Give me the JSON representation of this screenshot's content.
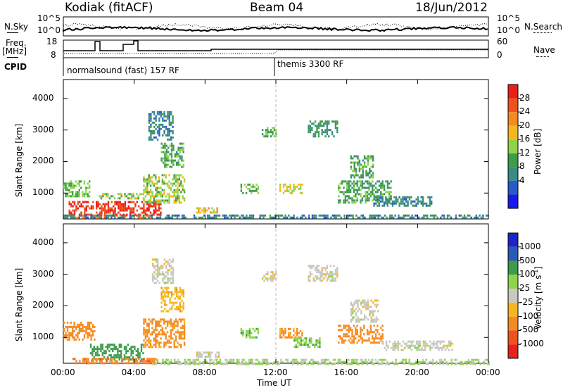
{
  "header": {
    "radar": "Kodiak (fitACF)",
    "beam": "Beam 04",
    "date": "18/Jun/2012"
  },
  "left_labels": {
    "nsky": "N.Sky",
    "freq": "Freq.",
    "freq_unit": "[MHz]",
    "cpid": "CPID"
  },
  "right_labels": {
    "nsearch": "N.Search",
    "nave": "Nave"
  },
  "strip_axes": {
    "noise_left_ticks": [
      "10^5",
      "10^0"
    ],
    "noise_right_ticks": [
      "10^5",
      "10^0"
    ],
    "freq_left_ticks": [
      "18",
      "8"
    ],
    "nave_right_ticks": [
      "60",
      "0"
    ]
  },
  "cpid": {
    "mode1": "normalsound (fast) 157 RF",
    "mode2": "themis 3300 RF"
  },
  "power_colorbar": {
    "label": "Power [dB]",
    "ticks": [
      "28",
      "24",
      "20",
      "16",
      "12",
      "8",
      "4"
    ],
    "colors": [
      "#e8201a",
      "#f0521e",
      "#f48a22",
      "#f4b81e",
      "#8ed44a",
      "#3c9c4a",
      "#3a8a8a",
      "#2a5ac8",
      "#1a1ae8"
    ]
  },
  "velocity_colorbar": {
    "label": "Velocity [m s",
    "label_sup": "-1",
    "label_end": "]",
    "ticks": [
      "1000",
      "500",
      "100",
      "25",
      "-25",
      "-100",
      "-500",
      "-1000"
    ],
    "colors": [
      "#1c24c8",
      "#2a5ab4",
      "#3c9c4a",
      "#8ed44a",
      "#c8c8c0",
      "#f4b81e",
      "#f48a22",
      "#f0521e",
      "#e8201a"
    ]
  },
  "yaxis": {
    "label": "Slant Range [km]",
    "ticks": [
      "4000",
      "3000",
      "2000",
      "1000"
    ]
  },
  "xaxis": {
    "label": "Time UT",
    "ticks": [
      "00:00",
      "04:00",
      "08:00",
      "12:00",
      "16:00",
      "20:00",
      "00:00"
    ]
  },
  "chart_data": [
    {
      "type": "heatmap",
      "title": "Power",
      "xlabel": "Time UT",
      "ylabel": "Slant Range [km]",
      "xlim": [
        0,
        24
      ],
      "ylim": [
        180,
        4600
      ],
      "regions": [
        {
          "t": [
            0.0,
            5.0
          ],
          "r": [
            200,
            320
          ],
          "value": 24
        },
        {
          "t": [
            0.3,
            5.5
          ],
          "r": [
            320,
            750
          ],
          "value": 28
        },
        {
          "t": [
            0.0,
            1.5
          ],
          "r": [
            900,
            1400
          ],
          "value": 12
        },
        {
          "t": [
            2.0,
            4.5
          ],
          "r": [
            800,
            1000
          ],
          "value": 14
        },
        {
          "t": [
            4.5,
            6.8
          ],
          "r": [
            700,
            1600
          ],
          "value": 14
        },
        {
          "t": [
            4.8,
            6.2
          ],
          "r": [
            2700,
            3600
          ],
          "value": 6
        },
        {
          "t": [
            5.5,
            6.8
          ],
          "r": [
            1800,
            2600
          ],
          "value": 10
        },
        {
          "t": [
            7.5,
            8.8
          ],
          "r": [
            350,
            550
          ],
          "value": 18
        },
        {
          "t": [
            10.0,
            11.0
          ],
          "r": [
            1000,
            1300
          ],
          "value": 12
        },
        {
          "t": [
            11.2,
            12.0
          ],
          "r": [
            2800,
            3100
          ],
          "value": 10
        },
        {
          "t": [
            12.2,
            13.5
          ],
          "r": [
            1000,
            1300
          ],
          "value": 16
        },
        {
          "t": [
            13.8,
            15.5
          ],
          "r": [
            2800,
            3300
          ],
          "value": 8
        },
        {
          "t": [
            15.5,
            18.5
          ],
          "r": [
            700,
            1400
          ],
          "value": 10
        },
        {
          "t": [
            16.2,
            17.5
          ],
          "r": [
            1500,
            2200
          ],
          "value": 10
        },
        {
          "t": [
            17.5,
            20.8
          ],
          "r": [
            600,
            900
          ],
          "value": 6
        },
        {
          "t": [
            0.0,
            24.0
          ],
          "r": [
            200,
            320
          ],
          "value": 6
        }
      ]
    },
    {
      "type": "heatmap",
      "title": "Velocity",
      "xlabel": "Time UT",
      "ylabel": "Slant Range [km]",
      "xlim": [
        0,
        24
      ],
      "ylim": [
        180,
        4600
      ],
      "regions": [
        {
          "t": [
            0.0,
            1.8
          ],
          "r": [
            900,
            1500
          ],
          "value": -300
        },
        {
          "t": [
            1.5,
            4.5
          ],
          "r": [
            300,
            800
          ],
          "value": 200
        },
        {
          "t": [
            0.5,
            5.3
          ],
          "r": [
            180,
            350
          ],
          "value": -400
        },
        {
          "t": [
            4.5,
            6.8
          ],
          "r": [
            700,
            1600
          ],
          "value": -150
        },
        {
          "t": [
            5.0,
            6.2
          ],
          "r": [
            2700,
            3500
          ],
          "value": 0
        },
        {
          "t": [
            5.5,
            6.8
          ],
          "r": [
            1800,
            2600
          ],
          "value": -80
        },
        {
          "t": [
            7.5,
            8.8
          ],
          "r": [
            350,
            550
          ],
          "value": 0
        },
        {
          "t": [
            10.0,
            11.0
          ],
          "r": [
            1000,
            1300
          ],
          "value": 80
        },
        {
          "t": [
            11.2,
            12.0
          ],
          "r": [
            2800,
            3100
          ],
          "value": 0
        },
        {
          "t": [
            12.2,
            13.5
          ],
          "r": [
            1000,
            1300
          ],
          "value": -120
        },
        {
          "t": [
            13.8,
            15.5
          ],
          "r": [
            2800,
            3300
          ],
          "value": 0
        },
        {
          "t": [
            13.0,
            14.5
          ],
          "r": [
            700,
            1000
          ],
          "value": 90
        },
        {
          "t": [
            15.5,
            18.0
          ],
          "r": [
            800,
            1400
          ],
          "value": -200
        },
        {
          "t": [
            16.2,
            17.8
          ],
          "r": [
            1500,
            2200
          ],
          "value": 0
        },
        {
          "t": [
            18.0,
            22.0
          ],
          "r": [
            600,
            900
          ],
          "value": 0
        },
        {
          "t": [
            5.0,
            24.0
          ],
          "r": [
            180,
            320
          ],
          "value": 30
        }
      ]
    }
  ]
}
